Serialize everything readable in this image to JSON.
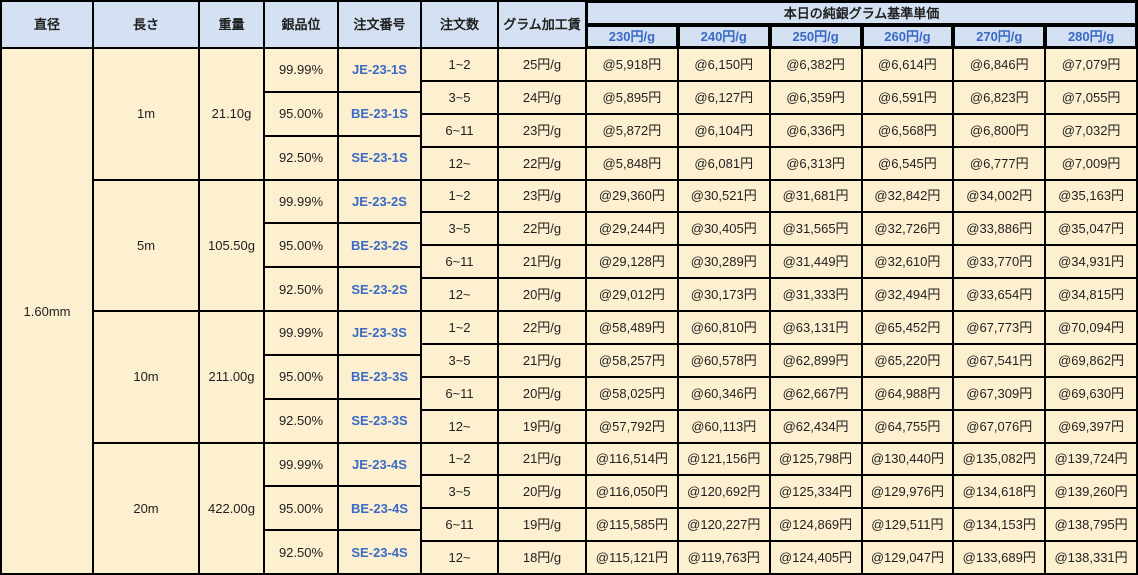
{
  "colors": {
    "header_bg": "#d3e1f2",
    "body_bg": "#fdf0d0",
    "accent_blue": "#3a6ac6",
    "text": "#1f1f1f",
    "border": "#000000"
  },
  "table": {
    "headers": {
      "diameter": "直径",
      "length": "長さ",
      "weight": "重量",
      "purity": "銀品位",
      "order_no": "注文番号",
      "order_qty": "注文数",
      "gram_fee": "グラム加工賃",
      "price_group": "本日の純銀グラム基準単価",
      "price_columns": [
        "230円/g",
        "240円/g",
        "250円/g",
        "260円/g",
        "270円/g",
        "280円/g"
      ]
    },
    "diameter": "1.60mm",
    "blocks": [
      {
        "length": "1m",
        "weight": "21.10g",
        "purities": [
          {
            "purity": "99.99%",
            "order_no": "JE-23-1S"
          },
          {
            "purity": "95.00%",
            "order_no": "BE-23-1S"
          },
          {
            "purity": "92.50%",
            "order_no": "SE-23-1S"
          }
        ],
        "rows": [
          {
            "qty": "1~2",
            "fee": "25円/g",
            "prices": [
              "@5,918円",
              "@6,150円",
              "@6,382円",
              "@6,614円",
              "@6,846円",
              "@7,079円"
            ]
          },
          {
            "qty": "3~5",
            "fee": "24円/g",
            "prices": [
              "@5,895円",
              "@6,127円",
              "@6,359円",
              "@6,591円",
              "@6,823円",
              "@7,055円"
            ]
          },
          {
            "qty": "6~11",
            "fee": "23円/g",
            "prices": [
              "@5,872円",
              "@6,104円",
              "@6,336円",
              "@6,568円",
              "@6,800円",
              "@7,032円"
            ]
          },
          {
            "qty": "12~",
            "fee": "22円/g",
            "prices": [
              "@5,848円",
              "@6,081円",
              "@6,313円",
              "@6,545円",
              "@6,777円",
              "@7,009円"
            ]
          }
        ]
      },
      {
        "length": "5m",
        "weight": "105.50g",
        "purities": [
          {
            "purity": "99.99%",
            "order_no": "JE-23-2S"
          },
          {
            "purity": "95.00%",
            "order_no": "BE-23-2S"
          },
          {
            "purity": "92.50%",
            "order_no": "SE-23-2S"
          }
        ],
        "rows": [
          {
            "qty": "1~2",
            "fee": "23円/g",
            "prices": [
              "@29,360円",
              "@30,521円",
              "@31,681円",
              "@32,842円",
              "@34,002円",
              "@35,163円"
            ]
          },
          {
            "qty": "3~5",
            "fee": "22円/g",
            "prices": [
              "@29,244円",
              "@30,405円",
              "@31,565円",
              "@32,726円",
              "@33,886円",
              "@35,047円"
            ]
          },
          {
            "qty": "6~11",
            "fee": "21円/g",
            "prices": [
              "@29,128円",
              "@30,289円",
              "@31,449円",
              "@32,610円",
              "@33,770円",
              "@34,931円"
            ]
          },
          {
            "qty": "12~",
            "fee": "20円/g",
            "prices": [
              "@29,012円",
              "@30,173円",
              "@31,333円",
              "@32,494円",
              "@33,654円",
              "@34,815円"
            ]
          }
        ]
      },
      {
        "length": "10m",
        "weight": "211.00g",
        "purities": [
          {
            "purity": "99.99%",
            "order_no": "JE-23-3S"
          },
          {
            "purity": "95.00%",
            "order_no": "BE-23-3S"
          },
          {
            "purity": "92.50%",
            "order_no": "SE-23-3S"
          }
        ],
        "rows": [
          {
            "qty": "1~2",
            "fee": "22円/g",
            "prices": [
              "@58,489円",
              "@60,810円",
              "@63,131円",
              "@65,452円",
              "@67,773円",
              "@70,094円"
            ]
          },
          {
            "qty": "3~5",
            "fee": "21円/g",
            "prices": [
              "@58,257円",
              "@60,578円",
              "@62,899円",
              "@65,220円",
              "@67,541円",
              "@69,862円"
            ]
          },
          {
            "qty": "6~11",
            "fee": "20円/g",
            "prices": [
              "@58,025円",
              "@60,346円",
              "@62,667円",
              "@64,988円",
              "@67,309円",
              "@69,630円"
            ]
          },
          {
            "qty": "12~",
            "fee": "19円/g",
            "prices": [
              "@57,792円",
              "@60,113円",
              "@62,434円",
              "@64,755円",
              "@67,076円",
              "@69,397円"
            ]
          }
        ]
      },
      {
        "length": "20m",
        "weight": "422.00g",
        "purities": [
          {
            "purity": "99.99%",
            "order_no": "JE-23-4S"
          },
          {
            "purity": "95.00%",
            "order_no": "BE-23-4S"
          },
          {
            "purity": "92.50%",
            "order_no": "SE-23-4S"
          }
        ],
        "rows": [
          {
            "qty": "1~2",
            "fee": "21円/g",
            "prices": [
              "@116,514円",
              "@121,156円",
              "@125,798円",
              "@130,440円",
              "@135,082円",
              "@139,724円"
            ]
          },
          {
            "qty": "3~5",
            "fee": "20円/g",
            "prices": [
              "@116,050円",
              "@120,692円",
              "@125,334円",
              "@129,976円",
              "@134,618円",
              "@139,260円"
            ]
          },
          {
            "qty": "6~11",
            "fee": "19円/g",
            "prices": [
              "@115,585円",
              "@120,227円",
              "@124,869円",
              "@129,511円",
              "@134,153円",
              "@138,795円"
            ]
          },
          {
            "qty": "12~",
            "fee": "18円/g",
            "prices": [
              "@115,121円",
              "@119,763円",
              "@124,405円",
              "@129,047円",
              "@133,689円",
              "@138,331円"
            ]
          }
        ]
      }
    ]
  }
}
